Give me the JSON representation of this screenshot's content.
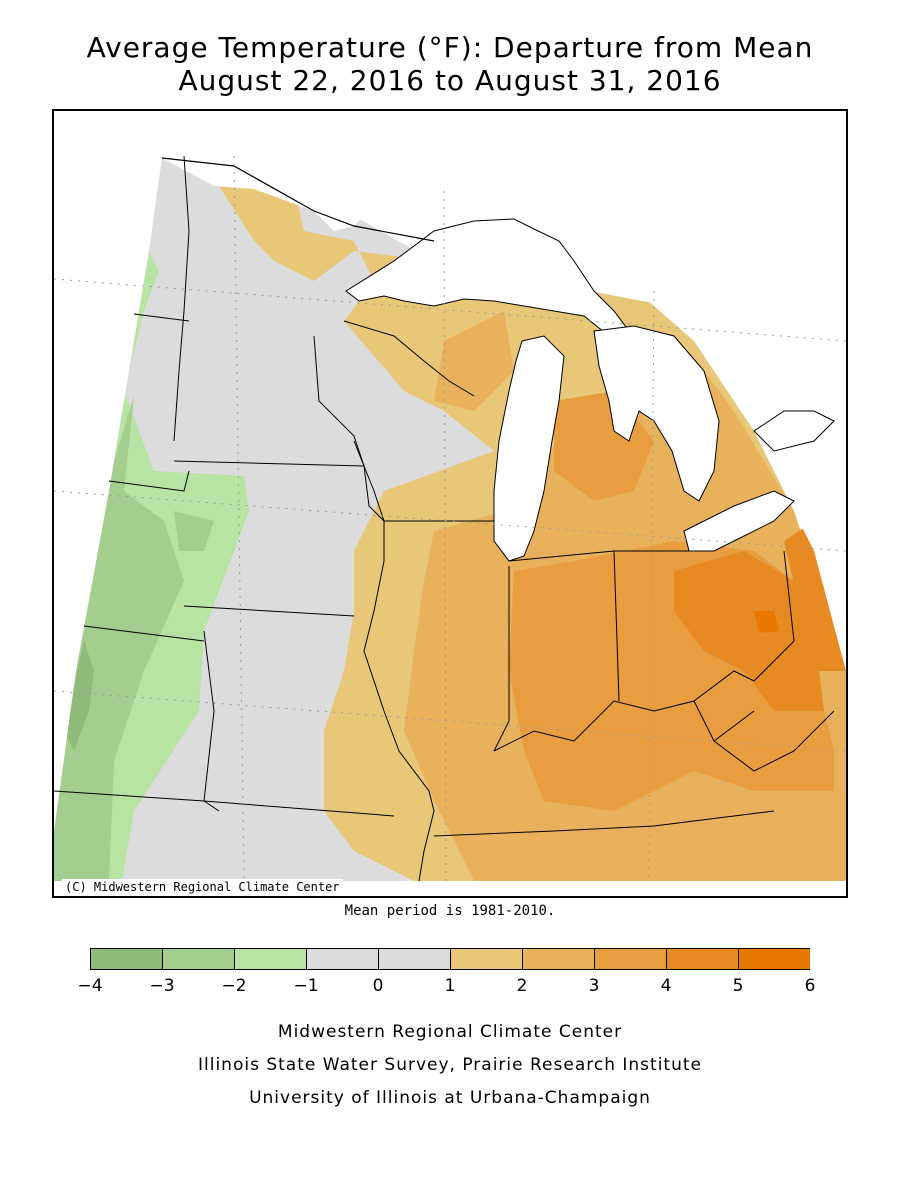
{
  "title": {
    "line1": "Average Temperature (°F): Departure from Mean",
    "line2": "August 22, 2016 to August 31, 2016"
  },
  "map": {
    "copyright": "(C) Midwestern Regional Climate Center",
    "mean_period": "Mean period is 1981-2010.",
    "lake_color": "#ffffff",
    "border_color": "#000000"
  },
  "legend": {
    "ticks": [
      "-4",
      "-3",
      "-2",
      "-1",
      "0",
      "1",
      "2",
      "3",
      "4",
      "5",
      "6"
    ],
    "bins": [
      {
        "from": -4,
        "to": -3,
        "color": "#8fba7a"
      },
      {
        "from": -3,
        "to": -2,
        "color": "#a3ce8e"
      },
      {
        "from": -2,
        "to": -1,
        "color": "#b7e3a3"
      },
      {
        "from": -1,
        "to": 0,
        "color": "#dcdcdc"
      },
      {
        "from": 0,
        "to": 1,
        "color": "#dcdcdc"
      },
      {
        "from": 1,
        "to": 2,
        "color": "#e8c878"
      },
      {
        "from": 2,
        "to": 3,
        "color": "#e8b25c"
      },
      {
        "from": 3,
        "to": 4,
        "color": "#e89e3e"
      },
      {
        "from": 4,
        "to": 5,
        "color": "#e88a22"
      },
      {
        "from": 5,
        "to": 6,
        "color": "#e87800"
      }
    ]
  },
  "credits": {
    "line1": "Midwestern Regional Climate Center",
    "line2": "Illinois State Water Survey, Prairie Research Institute",
    "line3": "University of Illinois at Urbana-Champaign"
  }
}
